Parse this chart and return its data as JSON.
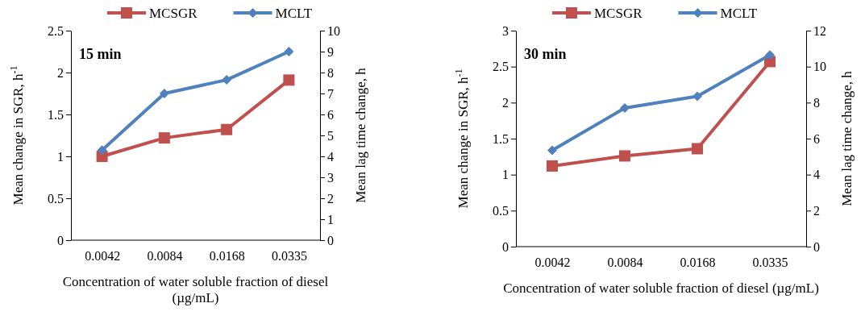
{
  "chart_data": [
    {
      "type": "line",
      "categories": [
        "0.0042",
        "0.0084",
        "0.0168",
        "0.0335"
      ],
      "xlabel": "Concentration of water soluble fraction of diesel (µg/mL)",
      "ylabel": "Mean change in SGR, h$^{-1}$",
      "y2label": "Mean lag time change, h",
      "ylim": [
        0,
        2.5
      ],
      "yticks": [
        0,
        0.5,
        1,
        1.5,
        2,
        2.5
      ],
      "y2lim": [
        0,
        10
      ],
      "y2ticks": [
        0,
        1,
        2,
        3,
        4,
        5,
        6,
        7,
        8,
        9,
        10
      ],
      "annotations": [
        "15 min"
      ],
      "legend": "top",
      "grid": false,
      "series": [
        {
          "name": "MCSGR",
          "color": "#c0504d",
          "marker": "square",
          "values": [
            1.0,
            1.22,
            1.32,
            1.91
          ]
        },
        {
          "name": "MCLT",
          "color": "#4f81bd",
          "marker": "diamond",
          "axis": "y2",
          "values": [
            4.3,
            7.0,
            7.65,
            9.0
          ]
        }
      ]
    },
    {
      "type": "line",
      "categories": [
        "0.0042",
        "0.0084",
        "0.0168",
        "0.0335"
      ],
      "xlabel": "Concentration of water soluble fraction of diesel (µg/mL)",
      "ylabel": "Mean change in SGR, h$^{-1}$",
      "y2label": "Mean lag time change, h",
      "ylim": [
        0,
        3
      ],
      "yticks": [
        0,
        0.5,
        1,
        1.5,
        2,
        2.5,
        3
      ],
      "y2lim": [
        0,
        12
      ],
      "y2ticks": [
        0,
        2,
        4,
        6,
        8,
        10,
        12
      ],
      "annotations": [
        "30 min"
      ],
      "legend": "top",
      "grid": false,
      "series": [
        {
          "name": "MCSGR",
          "color": "#c0504d",
          "marker": "square",
          "values": [
            1.12,
            1.26,
            1.36,
            2.57
          ]
        },
        {
          "name": "MCLT",
          "color": "#4f81bd",
          "marker": "diamond",
          "axis": "y2",
          "values": [
            5.35,
            7.7,
            8.35,
            10.65
          ]
        }
      ]
    }
  ]
}
